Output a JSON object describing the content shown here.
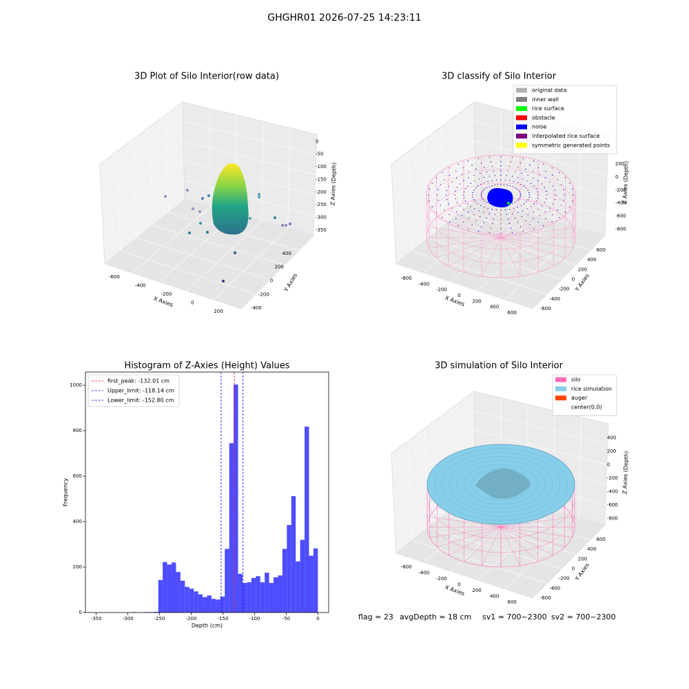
{
  "title": "GHGHR01 2026-07-25 14:23:11",
  "status": [
    "flag = 23",
    "avgDepth = 18 cm",
    "sv1 = 700~2300",
    "sv2 = 700~2300"
  ],
  "chart_data": [
    {
      "type": "scatter3d",
      "title": "3D Plot of Silo Interior(row data)",
      "xlabel": "X Axies",
      "ylabel": "Y Axies",
      "zlabel": "Z Axies (Depth)",
      "xlim": [
        -700,
        300
      ],
      "xticks": [
        -600,
        -400,
        -200,
        0,
        200
      ],
      "ylim": [
        -450,
        450
      ],
      "yticks": [
        -400,
        -200,
        0,
        200,
        400
      ],
      "zlim": [
        -380,
        20
      ],
      "zticks": [
        0,
        -50,
        -100,
        -150,
        -200,
        -250,
        -300,
        -350
      ]
    },
    {
      "type": "scatter3d",
      "title": "3D classify of Silo Interior",
      "xlabel": "X Axies",
      "ylabel": "Y Axies",
      "zlabel": "Z Axies (Depth)",
      "xlim": [
        -700,
        700
      ],
      "xticks": [
        -600,
        -400,
        -200,
        0,
        200,
        400,
        600
      ],
      "ylim": [
        -700,
        700
      ],
      "yticks": [
        -600,
        -400,
        -200,
        0,
        200,
        400,
        600
      ],
      "zlim": [
        -900,
        400
      ],
      "zticks": [
        200,
        0,
        -200,
        -400,
        -600,
        -800
      ],
      "legend_loc": "upper right",
      "legend": [
        {
          "name": "original data",
          "color": "#b0b0b0"
        },
        {
          "name": "inner wall",
          "color": "#808080"
        },
        {
          "name": "rice surface",
          "color": "#00ff00"
        },
        {
          "name": "obstacle",
          "color": "#ff0000"
        },
        {
          "name": "noise",
          "color": "#0000ff"
        },
        {
          "name": "interpolated rice surface",
          "color": "#800080"
        },
        {
          "name": "symmetric generated points",
          "color": "#ffff00"
        }
      ]
    },
    {
      "type": "histogram",
      "title": "Histogram of Z-Axies (Height) Values",
      "xlabel": "Depth (cm)",
      "ylabel": "Frequency",
      "color": "#4d4dff",
      "bins": [
        -350,
        -343,
        -336,
        -329,
        -322,
        -315,
        -308,
        -301,
        -294,
        -287,
        -280,
        -273,
        -266,
        -259,
        -252,
        -245,
        -238,
        -231,
        -224,
        -217,
        -210,
        -203,
        -196,
        -189,
        -182,
        -175,
        -168,
        -161,
        -154,
        -147,
        -140,
        -133,
        -126,
        -119,
        -112,
        -105,
        -98,
        -91,
        -84,
        -77,
        -70,
        -63,
        -56,
        -49,
        -42,
        -35,
        -28,
        -21,
        -14,
        -7,
        0
      ],
      "values": [
        0,
        0,
        0,
        0,
        0,
        0,
        0,
        0,
        2,
        0,
        1,
        2,
        2,
        3,
        143,
        222,
        211,
        220,
        178,
        140,
        113,
        105,
        93,
        80,
        68,
        75,
        60,
        57,
        70,
        280,
        745,
        1003,
        170,
        130,
        133,
        152,
        160,
        133,
        175,
        130,
        155,
        163,
        280,
        385,
        512,
        225,
        320,
        818,
        250,
        282
      ],
      "xlim": [
        -367,
        17
      ],
      "xticks": [
        -350,
        -300,
        -250,
        -200,
        -150,
        -100,
        -50,
        0
      ],
      "ylim": [
        0,
        1058
      ],
      "yticks": [
        0,
        200,
        400,
        600,
        800,
        1000
      ],
      "legend_loc": "upper left",
      "lines": [
        {
          "name": "first_peak: -132.01 cm",
          "value": -132.01,
          "color": "#ff0000"
        },
        {
          "name": "Upper_limit: -118.14 cm",
          "value": -118.14,
          "color": "#0000ff"
        },
        {
          "name": "Lower_limit: -152.80 cm",
          "value": -152.8,
          "color": "#0000ff"
        }
      ]
    },
    {
      "type": "surface3d",
      "title": "3D simulation of Silo Interior",
      "xlabel": "X Axies",
      "ylabel": "Y Axies",
      "zlabel": "Z Axies (Depth)",
      "xlim": [
        -700,
        700
      ],
      "xticks": [
        -600,
        -400,
        -200,
        0,
        200,
        400,
        600
      ],
      "ylim": [
        -700,
        700
      ],
      "yticks": [
        -600,
        -400,
        -200,
        0,
        200,
        400,
        600
      ],
      "zlim": [
        -900,
        500
      ],
      "zticks": [
        400,
        200,
        0,
        -200,
        -400,
        -600,
        -800
      ],
      "legend_loc": "upper right",
      "legend": [
        {
          "name": "silo",
          "color": "#ff69b4"
        },
        {
          "name": "rice simulation",
          "color": "#87ceeb"
        },
        {
          "name": "auger",
          "color": "#ff4500"
        },
        {
          "name": "center(0,0)"
        }
      ]
    }
  ]
}
